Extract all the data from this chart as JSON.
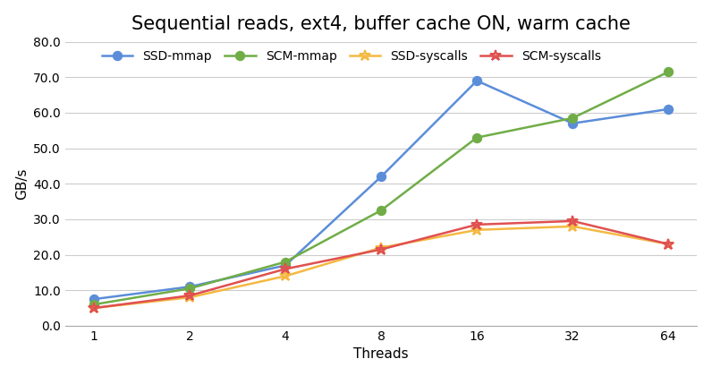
{
  "title": "Sequential reads, ext4, buffer cache ON, warm cache",
  "xlabel": "Threads",
  "ylabel": "GB/s",
  "x": [
    1,
    2,
    4,
    8,
    16,
    32,
    64
  ],
  "series": [
    {
      "label": "SSD-mmap",
      "color": "#5B8DD9",
      "marker": "o",
      "values": [
        7.5,
        11.0,
        17.0,
        42.0,
        69.0,
        57.0,
        61.0
      ]
    },
    {
      "label": "SCM-mmap",
      "color": "#70AD47",
      "marker": "o",
      "values": [
        6.0,
        10.5,
        18.0,
        32.5,
        53.0,
        58.5,
        71.5
      ]
    },
    {
      "label": "SSD-syscalls",
      "color": "#F4B942",
      "marker": "*",
      "values": [
        5.0,
        8.0,
        14.0,
        22.0,
        27.0,
        28.0,
        23.0
      ]
    },
    {
      "label": "SCM-syscalls",
      "color": "#E05050",
      "marker": "*",
      "values": [
        5.0,
        8.5,
        16.0,
        21.5,
        28.5,
        29.5,
        23.0
      ]
    }
  ],
  "ylim": [
    0.0,
    80.0
  ],
  "yticks": [
    0.0,
    10.0,
    20.0,
    30.0,
    40.0,
    50.0,
    60.0,
    70.0,
    80.0
  ],
  "background_color": "#ffffff",
  "grid_color": "#cccccc",
  "title_fontsize": 15,
  "axis_label_fontsize": 11,
  "tick_fontsize": 10,
  "legend_fontsize": 10
}
